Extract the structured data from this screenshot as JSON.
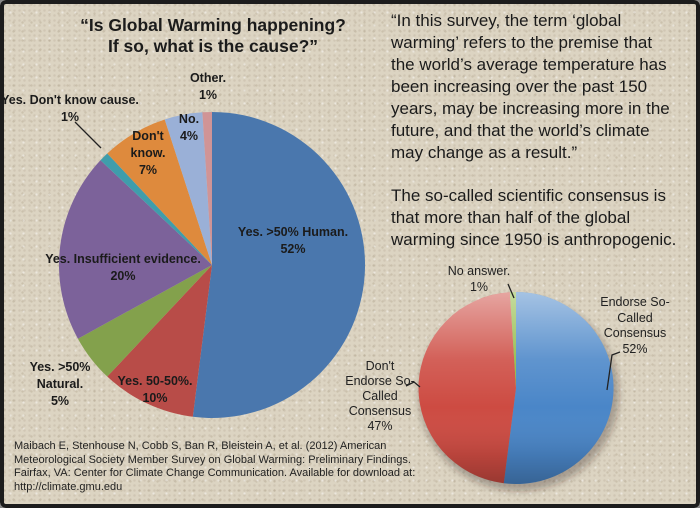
{
  "frame": {
    "background_color": "#dcd4c2",
    "border_color": "#1c1c1c"
  },
  "left_panel": {
    "title": "“Is Global Warming happening?\nIf so, what is the cause?”",
    "citation": "Maibach E, Stenhouse N, Cobb S, Ban R, Bleistein A, et al. (2012) American\nMeteorological Society Member Survey on Global Warming: Preliminary Findings.\nFairfax, VA: Center for Climate Change Communication. Available for download at:\nhttp://climate.gmu.edu"
  },
  "right_panel": {
    "survey_definition": "“In this survey, the term ‘global\nwarming’ refers to the premise that\nthe world’s average temperature has\nbeen increasing over the past 150\nyears, may be increasing more in the\nfuture, and that the world’s climate\nmay change as a result.”",
    "consensus_note": "The so-called scientific consensus is\nthat more than half of the global\nwarming since 1950 is anthropogenic."
  },
  "chart_data": [
    {
      "type": "pie",
      "title": "“Is Global Warming happening? If so, what is the cause?”",
      "start_angle": "12 o'clock, clockwise",
      "legend_position": "labels around and inside slices",
      "slices": [
        {
          "label": "Yes. >50% Human.",
          "pct": "52%",
          "value": 52,
          "color": "#4a77ad"
        },
        {
          "label": "Yes. 50-50%.",
          "pct": "10%",
          "value": 10,
          "color": "#b84c48"
        },
        {
          "label": "Yes. >50% Natural.",
          "pct": "5%",
          "value": 5,
          "color": "#83a14c"
        },
        {
          "label": "Yes. Insufficient evidence.",
          "pct": "20%",
          "value": 20,
          "color": "#7c629a"
        },
        {
          "label": "Yes. Don't know cause.",
          "pct": "1%",
          "value": 1,
          "color": "#3f9dab"
        },
        {
          "label": "Don't know.",
          "pct": "7%",
          "value": 7,
          "color": "#de8a3d"
        },
        {
          "label": "No.",
          "pct": "4%",
          "value": 4,
          "color": "#9ab0d7"
        },
        {
          "label": "Other.",
          "pct": "1%",
          "value": 1,
          "color": "#d09496"
        }
      ]
    },
    {
      "type": "pie",
      "style": "3d-glossy",
      "start_angle": "12 o'clock, clockwise",
      "slices": [
        {
          "label": "Endorse So-Called Consensus",
          "pct": "52%",
          "value": 52,
          "color": "#4a86c8"
        },
        {
          "label": "Don't Endorse So-Called Consensus",
          "pct": "47%",
          "value": 47,
          "color": "#cd4b42"
        },
        {
          "label": "No answer.",
          "pct": "1%",
          "value": 1,
          "color": "#8cb83f"
        }
      ]
    }
  ],
  "pie_labels": {
    "other": {
      "text": "Other.\n1%"
    },
    "no": {
      "text": "No.\n4%"
    },
    "dontknow": {
      "text": "Don't\nknow.\n7%"
    },
    "dkc": {
      "text": "Yes. Don't know cause.\n1%"
    },
    "human": {
      "text": "Yes. >50% Human.\n52%"
    },
    "insufficient": {
      "text": "Yes. Insufficient evidence.\n20%"
    },
    "natural": {
      "text": "Yes. >50%\nNatural.\n5%"
    },
    "fifty": {
      "text": "Yes.  50-50%.\n10%"
    },
    "noanswer": {
      "text": "No answer.\n1%"
    },
    "endorse": {
      "text": "Endorse So-\nCalled\nConsensus\n52%"
    },
    "dontendorse": {
      "text": "Don't\nEndorse So-\nCalled\nConsensus\n47%"
    }
  }
}
